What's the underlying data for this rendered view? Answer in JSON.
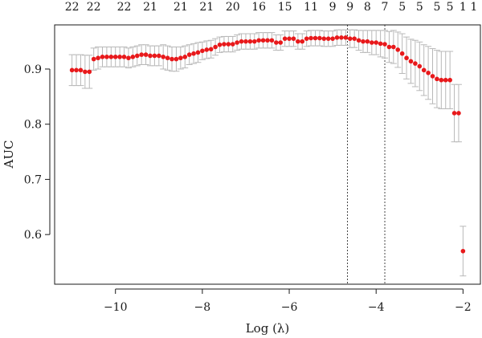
{
  "chart_data": {
    "type": "scatter",
    "title": "",
    "xlabel": "Log (λ)",
    "ylabel": "AUC",
    "xlim": [
      -11.4,
      -1.6
    ],
    "ylim": [
      0.51,
      0.98
    ],
    "x_ticks": [
      -10,
      -8,
      -6,
      -4,
      -2
    ],
    "x_tick_labels": [
      "−10",
      "−8",
      "−6",
      "−4",
      "−2"
    ],
    "y_ticks": [
      0.6,
      0.7,
      0.8,
      0.9
    ],
    "y_tick_labels": [
      "0.6",
      "0.7",
      "0.8",
      "0.9"
    ],
    "top_axis_labels": [
      {
        "x": -11.0,
        "label": "22"
      },
      {
        "x": -10.5,
        "label": "22"
      },
      {
        "x": -9.8,
        "label": "22"
      },
      {
        "x": -9.2,
        "label": "21"
      },
      {
        "x": -8.5,
        "label": "21"
      },
      {
        "x": -7.9,
        "label": "21"
      },
      {
        "x": -7.3,
        "label": "20"
      },
      {
        "x": -6.7,
        "label": "16"
      },
      {
        "x": -6.1,
        "label": "15"
      },
      {
        "x": -5.5,
        "label": "11"
      },
      {
        "x": -5.0,
        "label": "9"
      },
      {
        "x": -4.6,
        "label": "9"
      },
      {
        "x": -4.2,
        "label": "8"
      },
      {
        "x": -3.8,
        "label": "7"
      },
      {
        "x": -3.4,
        "label": "5"
      },
      {
        "x": -3.0,
        "label": "5"
      },
      {
        "x": -2.6,
        "label": "5"
      },
      {
        "x": -2.3,
        "label": "5"
      },
      {
        "x": -2.0,
        "label": "1"
      },
      {
        "x": -1.75,
        "label": "1"
      }
    ],
    "vertical_lines": [
      -4.66,
      -3.8
    ],
    "series": [
      {
        "x": [
          -11.0,
          -10.9,
          -10.8,
          -10.7,
          -10.6,
          -10.5,
          -10.4,
          -10.3,
          -10.2,
          -10.1,
          -10.0,
          -9.9,
          -9.8,
          -9.7,
          -9.6,
          -9.5,
          -9.4,
          -9.3,
          -9.2,
          -9.1,
          -9.0,
          -8.9,
          -8.8,
          -8.7,
          -8.6,
          -8.5,
          -8.4,
          -8.3,
          -8.2,
          -8.1,
          -8.0,
          -7.9,
          -7.8,
          -7.7,
          -7.6,
          -7.5,
          -7.4,
          -7.3,
          -7.2,
          -7.1,
          -7.0,
          -6.9,
          -6.8,
          -6.7,
          -6.6,
          -6.5,
          -6.4,
          -6.3,
          -6.2,
          -6.1,
          -6.0,
          -5.9,
          -5.8,
          -5.7,
          -5.6,
          -5.5,
          -5.4,
          -5.3,
          -5.2,
          -5.1,
          -5.0,
          -4.9,
          -4.8,
          -4.7,
          -4.6,
          -4.5,
          -4.4,
          -4.3,
          -4.2,
          -4.1,
          -4.0,
          -3.9,
          -3.8,
          -3.7,
          -3.6,
          -3.5,
          -3.4,
          -3.3,
          -3.2,
          -3.1,
          -3.0,
          -2.9,
          -2.8,
          -2.7,
          -2.6,
          -2.5,
          -2.4,
          -2.3,
          -2.2,
          -2.1,
          -2.0
        ],
        "y": [
          0.898,
          0.898,
          0.898,
          0.895,
          0.895,
          0.918,
          0.92,
          0.922,
          0.922,
          0.922,
          0.922,
          0.922,
          0.922,
          0.92,
          0.922,
          0.924,
          0.926,
          0.926,
          0.924,
          0.924,
          0.924,
          0.922,
          0.92,
          0.918,
          0.918,
          0.92,
          0.922,
          0.926,
          0.928,
          0.93,
          0.933,
          0.935,
          0.936,
          0.94,
          0.944,
          0.945,
          0.945,
          0.945,
          0.948,
          0.95,
          0.95,
          0.95,
          0.95,
          0.952,
          0.952,
          0.952,
          0.952,
          0.948,
          0.948,
          0.955,
          0.955,
          0.955,
          0.95,
          0.95,
          0.955,
          0.956,
          0.956,
          0.956,
          0.955,
          0.955,
          0.955,
          0.957,
          0.957,
          0.957,
          0.955,
          0.955,
          0.952,
          0.95,
          0.95,
          0.948,
          0.948,
          0.946,
          0.945,
          0.94,
          0.94,
          0.935,
          0.928,
          0.92,
          0.914,
          0.91,
          0.905,
          0.898,
          0.893,
          0.887,
          0.882,
          0.88,
          0.88,
          0.88,
          0.82,
          0.82,
          0.57
        ],
        "err": [
          0.028,
          0.028,
          0.028,
          0.03,
          0.03,
          0.02,
          0.02,
          0.018,
          0.018,
          0.018,
          0.018,
          0.018,
          0.018,
          0.018,
          0.018,
          0.018,
          0.018,
          0.018,
          0.018,
          0.018,
          0.018,
          0.022,
          0.022,
          0.022,
          0.022,
          0.02,
          0.02,
          0.018,
          0.018,
          0.018,
          0.016,
          0.016,
          0.016,
          0.015,
          0.014,
          0.014,
          0.014,
          0.014,
          0.014,
          0.014,
          0.014,
          0.014,
          0.014,
          0.014,
          0.014,
          0.014,
          0.014,
          0.014,
          0.014,
          0.014,
          0.014,
          0.014,
          0.014,
          0.014,
          0.014,
          0.014,
          0.014,
          0.014,
          0.014,
          0.014,
          0.014,
          0.014,
          0.014,
          0.014,
          0.016,
          0.016,
          0.018,
          0.02,
          0.02,
          0.022,
          0.022,
          0.024,
          0.025,
          0.028,
          0.03,
          0.032,
          0.036,
          0.038,
          0.04,
          0.042,
          0.044,
          0.046,
          0.048,
          0.05,
          0.052,
          0.052,
          0.052,
          0.052,
          0.052,
          0.052,
          0.045
        ]
      }
    ],
    "colors": {
      "points": "#e8191b",
      "error_bars": "#b8b8b8",
      "axes": "#1a1a1a"
    },
    "grid": false,
    "legend": "none"
  }
}
